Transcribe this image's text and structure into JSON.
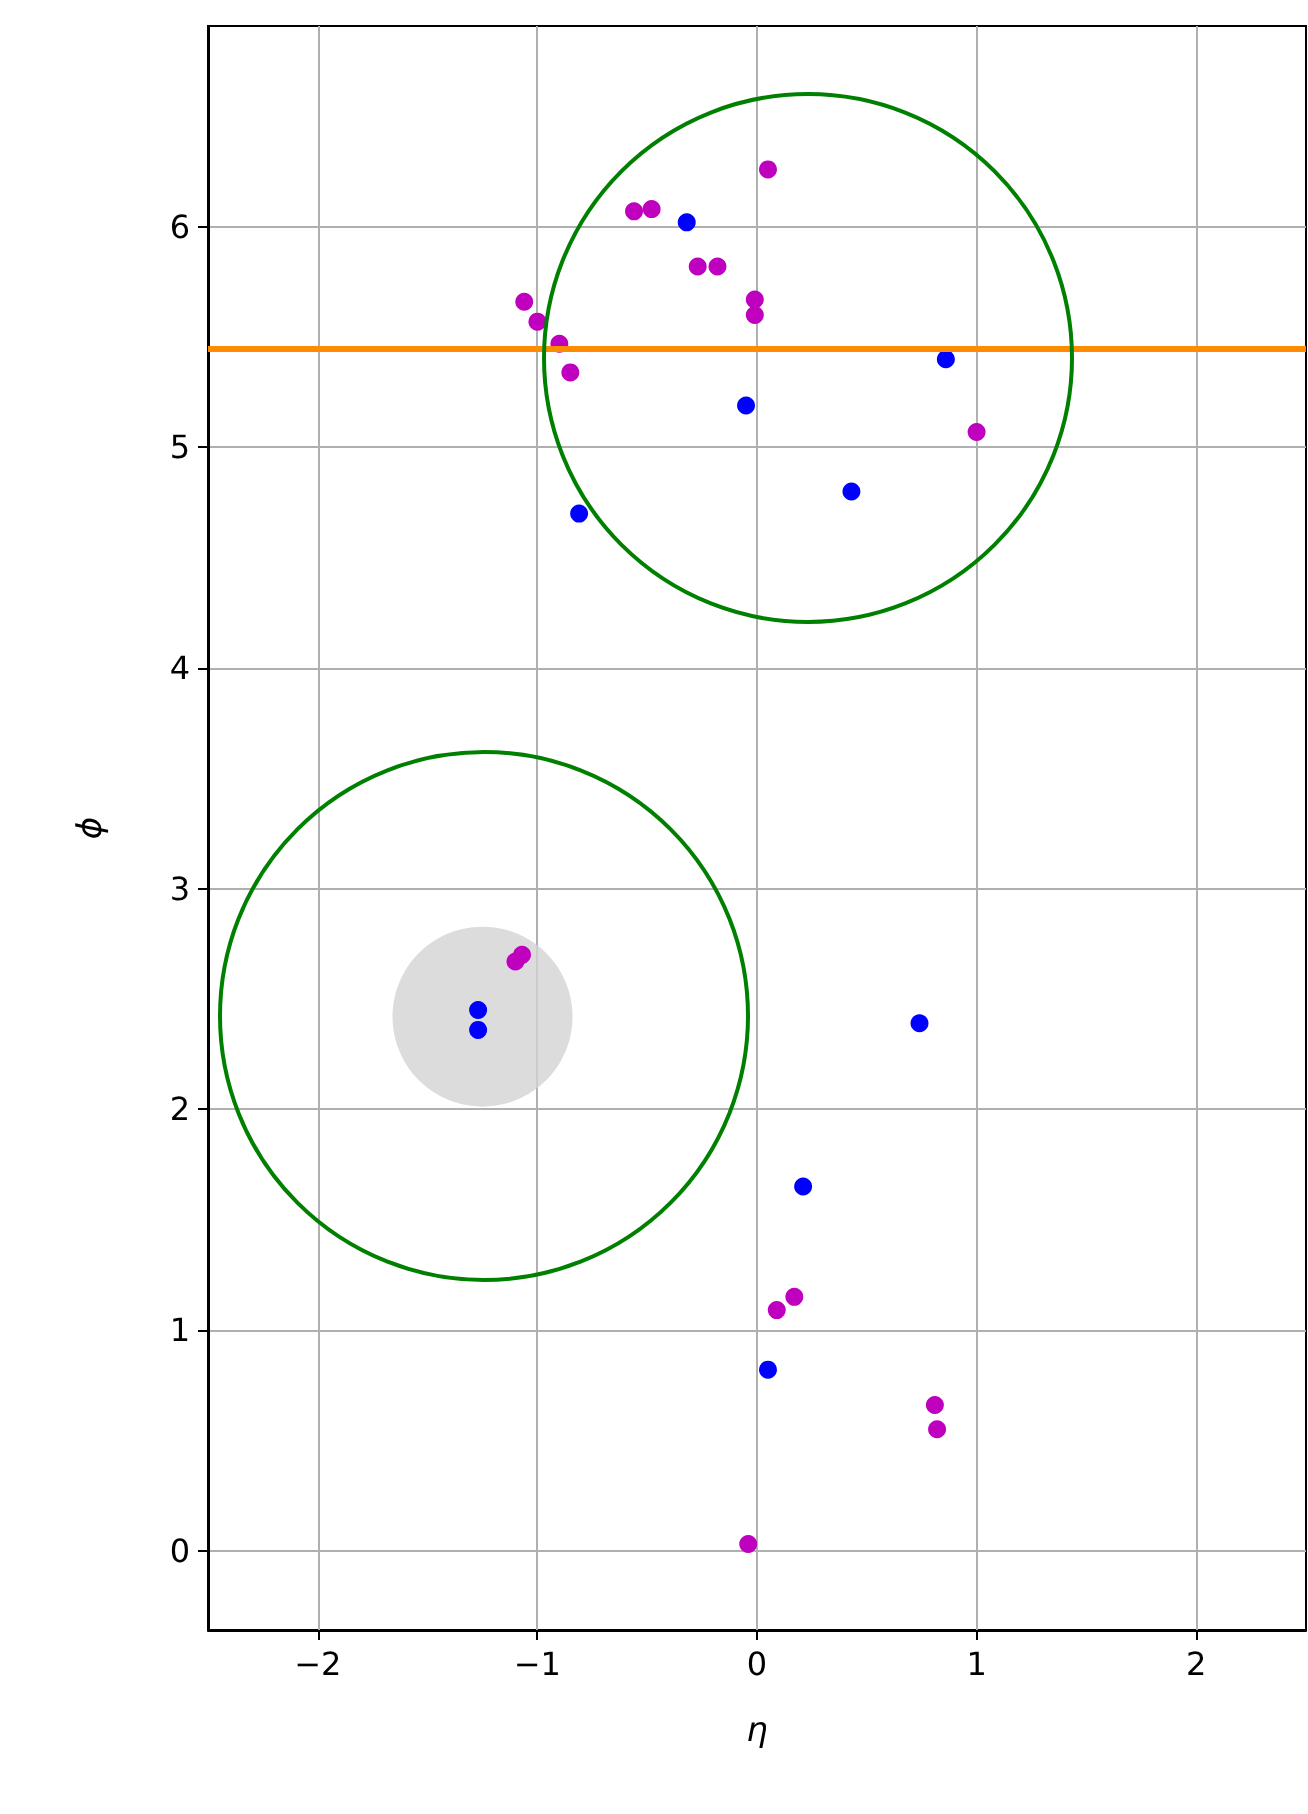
{
  "chart_data": {
    "type": "scatter",
    "xlabel": "η",
    "ylabel": "ϕ",
    "xlim": [
      -2.5,
      2.5
    ],
    "ylim": [
      -0.36,
      6.91
    ],
    "xticks": [
      -2,
      -1,
      0,
      1,
      2
    ],
    "yticks": [
      0,
      1,
      2,
      3,
      4,
      5,
      6
    ],
    "grid": true,
    "marker": "circle",
    "ref_lines": [
      {
        "axis": "y",
        "value": 5.45,
        "color": "#ff8c00"
      }
    ],
    "series": [
      {
        "type": "bubble",
        "color": "#d3d3d3",
        "x": [
          -1.25
        ],
        "values": [
          2.42
        ],
        "sizes": [
          1
        ]
      },
      {
        "color": "#0000ff",
        "x": [
          -0.32,
          -0.05,
          0.86,
          0.43,
          -0.81,
          -1.27,
          -1.27,
          0.74,
          0.21,
          0.05
        ],
        "values": [
          6.02,
          5.19,
          5.4,
          4.8,
          4.7,
          2.45,
          2.36,
          2.39,
          1.65,
          0.82
        ]
      },
      {
        "color": "#bf00bf",
        "x": [
          0.05,
          -0.56,
          -0.48,
          -0.27,
          -0.18,
          -0.01,
          -0.01,
          -1.06,
          -1.0,
          -0.9,
          -0.85,
          1.0,
          -1.1,
          -1.07,
          0.09,
          0.17,
          0.81,
          0.82,
          -0.04
        ],
        "values": [
          6.26,
          6.07,
          6.08,
          5.82,
          5.82,
          5.67,
          5.6,
          5.66,
          5.57,
          5.47,
          5.34,
          5.07,
          2.67,
          2.7,
          1.09,
          1.15,
          0.66,
          0.55,
          0.03
        ]
      }
    ]
  }
}
